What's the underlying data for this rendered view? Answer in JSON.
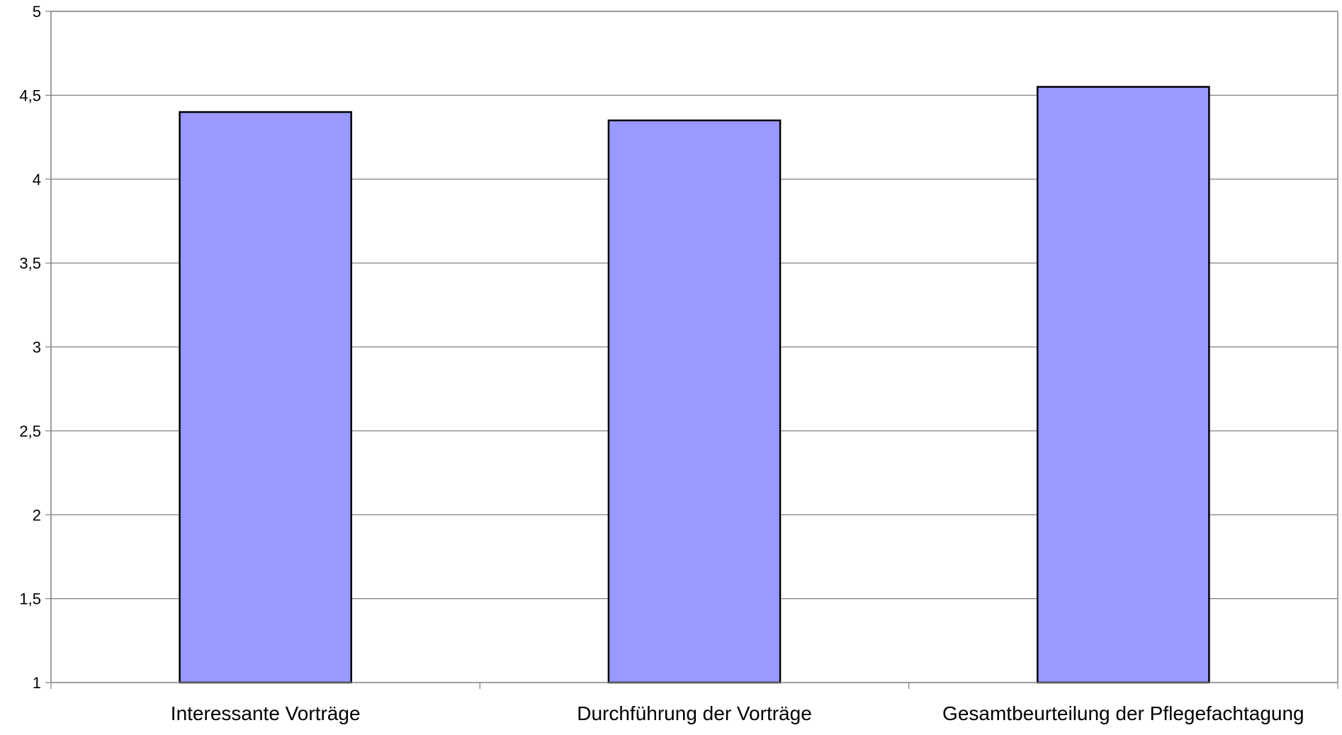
{
  "chart_data": {
    "type": "bar",
    "title": "",
    "xlabel": "",
    "ylabel": "",
    "categories": [
      "Interessante Vorträge",
      "Durchführung der Vorträge",
      "Gesamtbeurteilung der Pflegefachtagung"
    ],
    "values": [
      4.4,
      4.35,
      4.55
    ],
    "ylim": [
      1,
      5
    ],
    "yticks": [
      "1",
      "1,5",
      "2",
      "2,5",
      "3",
      "3,5",
      "4",
      "4,5",
      "5"
    ],
    "grid": true,
    "legend": "none",
    "bar_color": "#9999ff",
    "bar_edge_color": "#000000",
    "gridline_color": "#808080"
  }
}
